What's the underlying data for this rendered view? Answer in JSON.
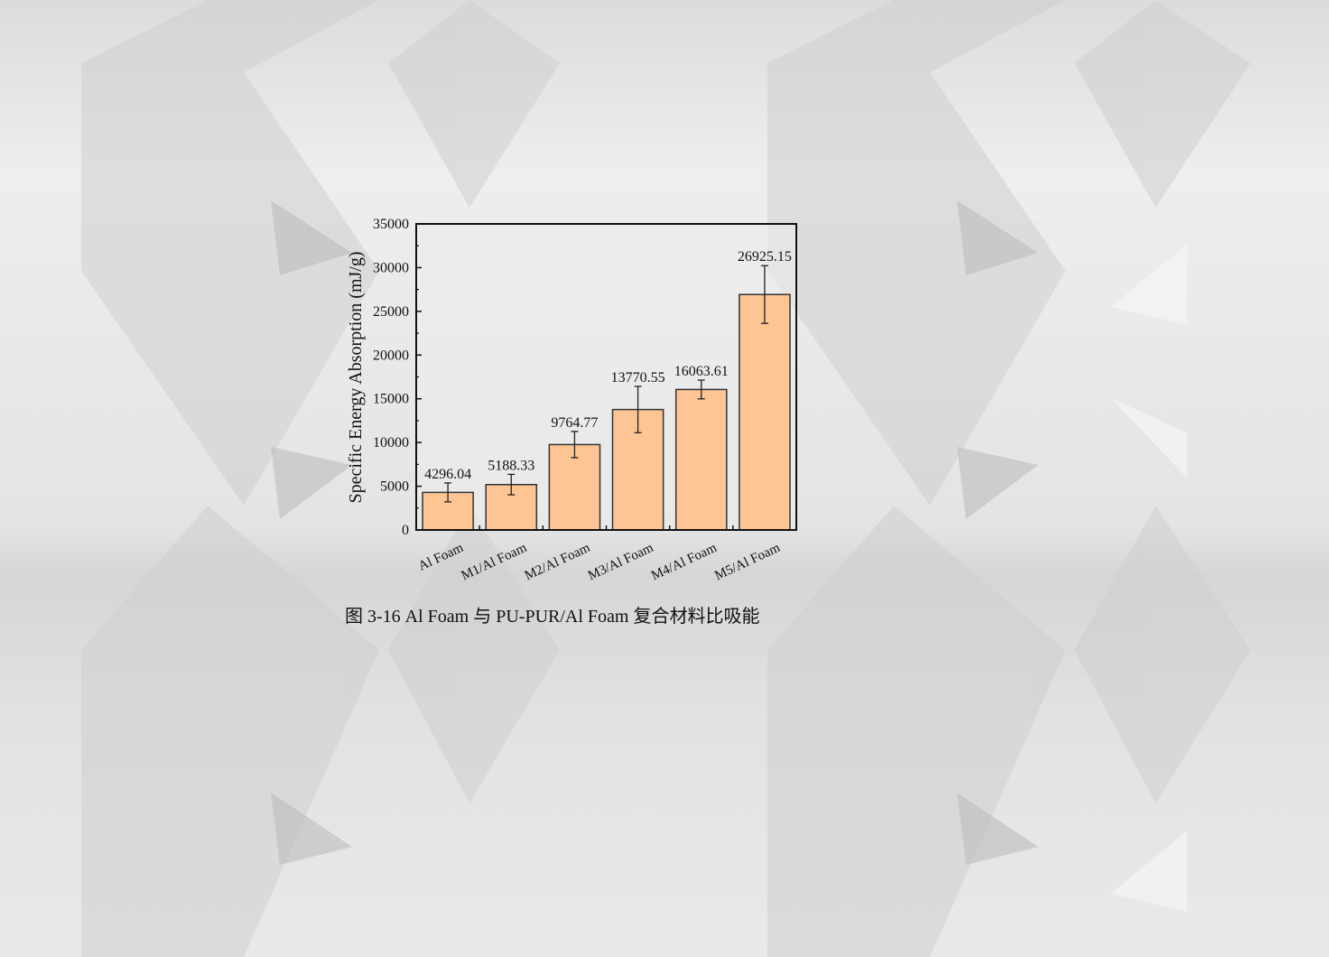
{
  "figure": {
    "caption": "图 3-16 Al Foam 与 PU-PUR/Al Foam 复合材料比吸能"
  },
  "chart_data": {
    "type": "bar",
    "title": "",
    "xlabel": "",
    "ylabel": "Specific Energy Absorption (mJ/g)",
    "ylim": [
      0,
      35000
    ],
    "yticks": [
      0,
      5000,
      10000,
      15000,
      20000,
      25000,
      30000,
      35000
    ],
    "ytick_labels": [
      "0",
      "5000",
      "10000",
      "15000",
      "20000",
      "25000",
      "30000",
      "35000"
    ],
    "categories": [
      "Al Foam",
      "M1/Al Foam",
      "M2/Al Foam",
      "M3/Al Foam",
      "M4/Al Foam",
      "M5/Al Foam"
    ],
    "values": [
      4296.04,
      5188.33,
      9764.77,
      13770.55,
      16063.61,
      26925.15
    ],
    "data_labels": [
      "4296.04",
      "5188.33",
      "9764.77",
      "13770.55",
      "16063.61",
      "26925.15"
    ],
    "error": [
      1080,
      1170,
      1500,
      2650,
      1070,
      3300
    ],
    "bar_color": "#fdc494",
    "bar_edge_color": "#333333",
    "grid": false,
    "legend": "none"
  },
  "background": {
    "base_color": "#e6e6e6",
    "pattern": "gray geometric polygons"
  }
}
